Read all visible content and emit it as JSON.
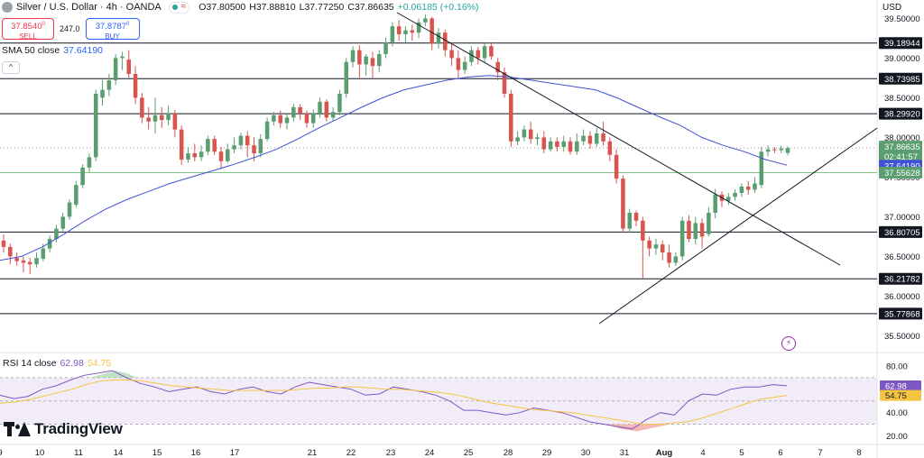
{
  "header": {
    "symbol": "Silver / U.S. Dollar · 4h · OANDA",
    "ohlc": [
      {
        "k": "O",
        "v": "37.80500"
      },
      {
        "k": "H",
        "v": "37.88810"
      },
      {
        "k": "L",
        "v": "37.77250"
      },
      {
        "k": "C",
        "v": "37.86635"
      },
      {
        "k": "",
        "v": "+0.06185 (+0.16%)"
      }
    ]
  },
  "trade": {
    "sell_price": "37.8540",
    "sell_sup": "0",
    "sell_label": "SELL",
    "spread": "247.0",
    "buy_price": "37.8787",
    "buy_sup": "0",
    "buy_label": "BUY"
  },
  "sma_legend": {
    "label": "SMA 50 close",
    "value": "37.64190"
  },
  "rsi_legend": {
    "label": "RSI 14 close",
    "value": "62.98",
    "value2": "54.75"
  },
  "currency": "USD",
  "logo": "TradingView",
  "colors": {
    "up": "#5a9e6f",
    "down": "#d9534f",
    "sma": "#3f51d6",
    "rsi": "#7e57c2",
    "rsi_ma": "#f5c542",
    "green_line": "#81c784"
  },
  "chart_data": {
    "type": "candlestick",
    "ylim": [
      35.3,
      39.55
    ],
    "y_ticks": [
      "39.50000",
      "39.00000",
      "38.50000",
      "38.00000",
      "37.50000",
      "37.00000",
      "36.50000",
      "36.00000",
      "35.50000"
    ],
    "x_ticks": [
      "9",
      "10",
      "11",
      "14",
      "15",
      "16",
      "17",
      "21",
      "22",
      "23",
      "24",
      "25",
      "28",
      "29",
      "30",
      "31",
      "Aug",
      "4",
      "5",
      "6",
      "7",
      "8"
    ],
    "price_labels": [
      {
        "value": 39.18944,
        "text": "39.18944",
        "style": "level"
      },
      {
        "value": 38.73985,
        "text": "38.73985",
        "style": "level"
      },
      {
        "value": 38.2992,
        "text": "38.29920",
        "style": "level"
      },
      {
        "value": 37.86635,
        "text": "37.86635",
        "text2": "02:41:57",
        "style": "current"
      },
      {
        "value": 37.6419,
        "text": "37.64190",
        "style": "sma"
      },
      {
        "value": 37.55628,
        "text": "37.55628",
        "style": "green"
      },
      {
        "value": 36.80705,
        "text": "36.80705",
        "style": "level"
      },
      {
        "value": 36.21782,
        "text": "36.21782",
        "style": "level"
      },
      {
        "value": 35.77868,
        "text": "35.77868",
        "style": "level"
      }
    ],
    "levels": [
      39.18944,
      38.73985,
      38.2992,
      36.80705,
      36.21782,
      35.77868
    ],
    "green_level": 37.55628,
    "candles": [
      [
        36.7,
        36.62,
        36.78,
        36.55
      ],
      [
        36.62,
        36.5,
        36.66,
        36.4
      ],
      [
        36.48,
        36.44,
        36.55,
        36.38
      ],
      [
        36.45,
        36.42,
        36.5,
        36.3
      ],
      [
        36.43,
        36.4,
        36.48,
        36.28
      ],
      [
        36.4,
        36.48,
        36.55,
        36.36
      ],
      [
        36.47,
        36.6,
        36.66,
        36.44
      ],
      [
        36.6,
        36.72,
        36.76,
        36.55
      ],
      [
        36.72,
        36.85,
        36.9,
        36.68
      ],
      [
        36.85,
        37.0,
        37.05,
        36.82
      ],
      [
        37.0,
        37.18,
        37.22,
        36.96
      ],
      [
        37.15,
        37.4,
        37.45,
        37.12
      ],
      [
        37.4,
        37.62,
        37.66,
        37.36
      ],
      [
        37.62,
        37.75,
        37.8,
        37.55
      ],
      [
        37.75,
        38.55,
        38.6,
        37.7
      ],
      [
        38.5,
        38.6,
        38.72,
        38.4
      ],
      [
        38.6,
        38.72,
        38.8,
        38.52
      ],
      [
        38.72,
        39.0,
        39.05,
        38.66
      ],
      [
        39.0,
        39.02,
        39.08,
        38.85
      ],
      [
        38.98,
        38.8,
        39.1,
        38.75
      ],
      [
        38.8,
        38.5,
        38.9,
        38.42
      ],
      [
        38.5,
        38.25,
        38.56,
        38.18
      ],
      [
        38.25,
        38.2,
        38.38,
        38.1
      ],
      [
        38.2,
        38.28,
        38.5,
        38.05
      ],
      [
        38.28,
        38.22,
        38.38,
        38.12
      ],
      [
        38.22,
        38.3,
        38.4,
        38.15
      ],
      [
        38.3,
        38.1,
        38.35,
        38.0
      ],
      [
        38.1,
        37.72,
        38.15,
        37.65
      ],
      [
        37.72,
        37.8,
        37.88,
        37.68
      ],
      [
        37.8,
        37.75,
        37.92,
        37.7
      ],
      [
        37.75,
        37.82,
        37.9,
        37.7
      ],
      [
        37.82,
        37.98,
        38.02,
        37.78
      ],
      [
        37.98,
        37.82,
        38.02,
        37.78
      ],
      [
        37.82,
        37.7,
        37.88,
        37.6
      ],
      [
        37.7,
        37.85,
        37.92,
        37.68
      ],
      [
        37.85,
        37.9,
        38.0,
        37.8
      ],
      [
        37.9,
        38.02,
        38.06,
        37.85
      ],
      [
        38.02,
        37.9,
        38.08,
        37.75
      ],
      [
        37.9,
        37.8,
        38.0,
        37.7
      ],
      [
        37.8,
        37.98,
        38.04,
        37.75
      ],
      [
        37.98,
        38.2,
        38.25,
        37.95
      ],
      [
        38.2,
        38.28,
        38.32,
        38.15
      ],
      [
        38.28,
        38.18,
        38.34,
        38.12
      ],
      [
        38.18,
        38.25,
        38.3,
        38.1
      ],
      [
        38.25,
        38.38,
        38.42,
        38.2
      ],
      [
        38.38,
        38.3,
        38.42,
        38.22
      ],
      [
        38.3,
        38.18,
        38.34,
        38.12
      ],
      [
        38.18,
        38.3,
        38.35,
        38.12
      ],
      [
        38.3,
        38.45,
        38.5,
        38.25
      ],
      [
        38.45,
        38.25,
        38.48,
        38.2
      ],
      [
        38.25,
        38.32,
        38.38,
        38.2
      ],
      [
        38.32,
        38.55,
        38.6,
        38.28
      ],
      [
        38.55,
        38.95,
        39.0,
        38.5
      ],
      [
        38.95,
        39.1,
        39.15,
        38.88
      ],
      [
        39.1,
        38.92,
        39.16,
        38.75
      ],
      [
        38.92,
        39.02,
        39.05,
        38.78
      ],
      [
        39.0,
        38.9,
        39.08,
        38.75
      ],
      [
        38.9,
        39.05,
        39.1,
        38.82
      ],
      [
        39.05,
        39.2,
        39.26,
        39.0
      ],
      [
        39.2,
        39.4,
        39.45,
        39.15
      ],
      [
        39.4,
        39.3,
        39.48,
        39.22
      ],
      [
        39.3,
        39.35,
        39.4,
        39.2
      ],
      [
        39.35,
        39.32,
        39.42,
        39.22
      ],
      [
        39.32,
        39.45,
        39.5,
        39.25
      ],
      [
        39.45,
        39.5,
        39.55,
        39.4
      ],
      [
        39.5,
        39.18,
        39.52,
        39.1
      ],
      [
        39.18,
        39.32,
        39.38,
        39.12
      ],
      [
        39.32,
        39.1,
        39.36,
        39.02
      ],
      [
        39.1,
        39.0,
        39.18,
        38.9
      ],
      [
        39.0,
        38.85,
        39.1,
        38.75
      ],
      [
        38.85,
        38.95,
        39.02,
        38.8
      ],
      [
        38.95,
        39.1,
        39.15,
        38.9
      ],
      [
        39.1,
        39.0,
        39.14,
        38.92
      ],
      [
        39.0,
        39.15,
        39.2,
        38.95
      ],
      [
        39.15,
        39.02,
        39.2,
        38.98
      ],
      [
        38.95,
        38.82,
        39.0,
        38.72
      ],
      [
        38.82,
        38.55,
        38.88,
        38.5
      ],
      [
        38.55,
        37.95,
        38.6,
        37.88
      ],
      [
        37.95,
        38.0,
        38.08,
        37.9
      ],
      [
        38.0,
        38.1,
        38.15,
        37.95
      ],
      [
        38.1,
        37.98,
        38.2,
        37.92
      ],
      [
        37.98,
        38.0,
        38.05,
        37.9
      ],
      [
        38.0,
        37.85,
        38.08,
        37.8
      ],
      [
        37.85,
        37.95,
        38.0,
        37.82
      ],
      [
        37.95,
        37.88,
        38.0,
        37.82
      ],
      [
        37.88,
        37.95,
        38.02,
        37.82
      ],
      [
        37.95,
        37.82,
        38.0,
        37.78
      ],
      [
        37.82,
        37.95,
        38.05,
        37.78
      ],
      [
        37.95,
        38.02,
        38.1,
        37.9
      ],
      [
        38.02,
        37.92,
        38.08,
        37.86
      ],
      [
        37.92,
        38.05,
        38.12,
        37.88
      ],
      [
        38.05,
        37.95,
        38.2,
        37.9
      ],
      [
        37.95,
        37.78,
        38.0,
        37.7
      ],
      [
        37.78,
        37.48,
        37.85,
        37.42
      ],
      [
        37.48,
        36.85,
        37.52,
        36.8
      ],
      [
        36.85,
        37.05,
        37.1,
        36.8
      ],
      [
        37.05,
        36.95,
        37.08,
        36.88
      ],
      [
        36.95,
        36.7,
        37.0,
        36.22
      ],
      [
        36.7,
        36.6,
        36.75,
        36.5
      ],
      [
        36.6,
        36.65,
        36.72,
        36.52
      ],
      [
        36.65,
        36.55,
        36.7,
        36.45
      ],
      [
        36.55,
        36.42,
        36.65,
        36.36
      ],
      [
        36.42,
        36.5,
        36.55,
        36.38
      ],
      [
        36.5,
        36.95,
        37.0,
        36.45
      ],
      [
        36.95,
        36.72,
        37.02,
        36.68
      ],
      [
        36.72,
        36.92,
        37.0,
        36.65
      ],
      [
        36.92,
        36.75,
        36.98,
        36.6
      ],
      [
        36.78,
        37.05,
        37.12,
        36.75
      ],
      [
        37.05,
        37.28,
        37.35,
        36.98
      ],
      [
        37.28,
        37.2,
        37.32,
        37.12
      ],
      [
        37.2,
        37.25,
        37.3,
        37.15
      ],
      [
        37.25,
        37.3,
        37.35,
        37.2
      ],
      [
        37.3,
        37.38,
        37.42,
        37.25
      ],
      [
        37.38,
        37.34,
        37.45,
        37.28
      ],
      [
        37.34,
        37.42,
        37.5,
        37.3
      ],
      [
        37.4,
        37.82,
        37.88,
        37.36
      ],
      [
        37.82,
        37.85,
        37.9,
        37.76
      ],
      [
        37.85,
        37.84,
        37.88,
        37.8
      ],
      [
        37.84,
        37.86,
        37.89,
        37.8
      ],
      [
        37.805,
        37.866,
        37.888,
        37.772
      ]
    ],
    "sma": [
      36.45,
      36.5,
      36.62,
      36.78,
      36.95,
      37.1,
      37.22,
      37.32,
      37.42,
      37.5,
      37.58,
      37.66,
      37.75,
      37.85,
      37.98,
      38.12,
      38.25,
      38.38,
      38.5,
      38.6,
      38.66,
      38.72,
      38.76,
      38.78,
      38.76,
      38.72,
      38.68,
      38.64,
      38.6,
      38.5,
      38.38,
      38.26,
      38.15,
      38.0,
      37.9,
      37.82,
      37.72,
      37.65
    ],
    "rsi": [
      55,
      52,
      54,
      60,
      63,
      68,
      72,
      74,
      76,
      70,
      65,
      62,
      58,
      60,
      62,
      58,
      56,
      60,
      62,
      58,
      56,
      62,
      66,
      64,
      62,
      60,
      55,
      56,
      62,
      60,
      58,
      55,
      50,
      42,
      42,
      40,
      38,
      40,
      44,
      42,
      40,
      36,
      32,
      30,
      28,
      26,
      34,
      40,
      38,
      50,
      56,
      55,
      60,
      62,
      62,
      64,
      63
    ],
    "rsi_ma": [
      48,
      49,
      51,
      54,
      57,
      60,
      64,
      67,
      68,
      68,
      67,
      65,
      63,
      62,
      61,
      60,
      59,
      59,
      59,
      59,
      59,
      60,
      61,
      61,
      62,
      62,
      61,
      60,
      60,
      59,
      58,
      57,
      55,
      52,
      49,
      47,
      45,
      43,
      42,
      41,
      40,
      38,
      36,
      34,
      32,
      30,
      30,
      31,
      32,
      35,
      39,
      43,
      47,
      51,
      53,
      54.75
    ]
  }
}
